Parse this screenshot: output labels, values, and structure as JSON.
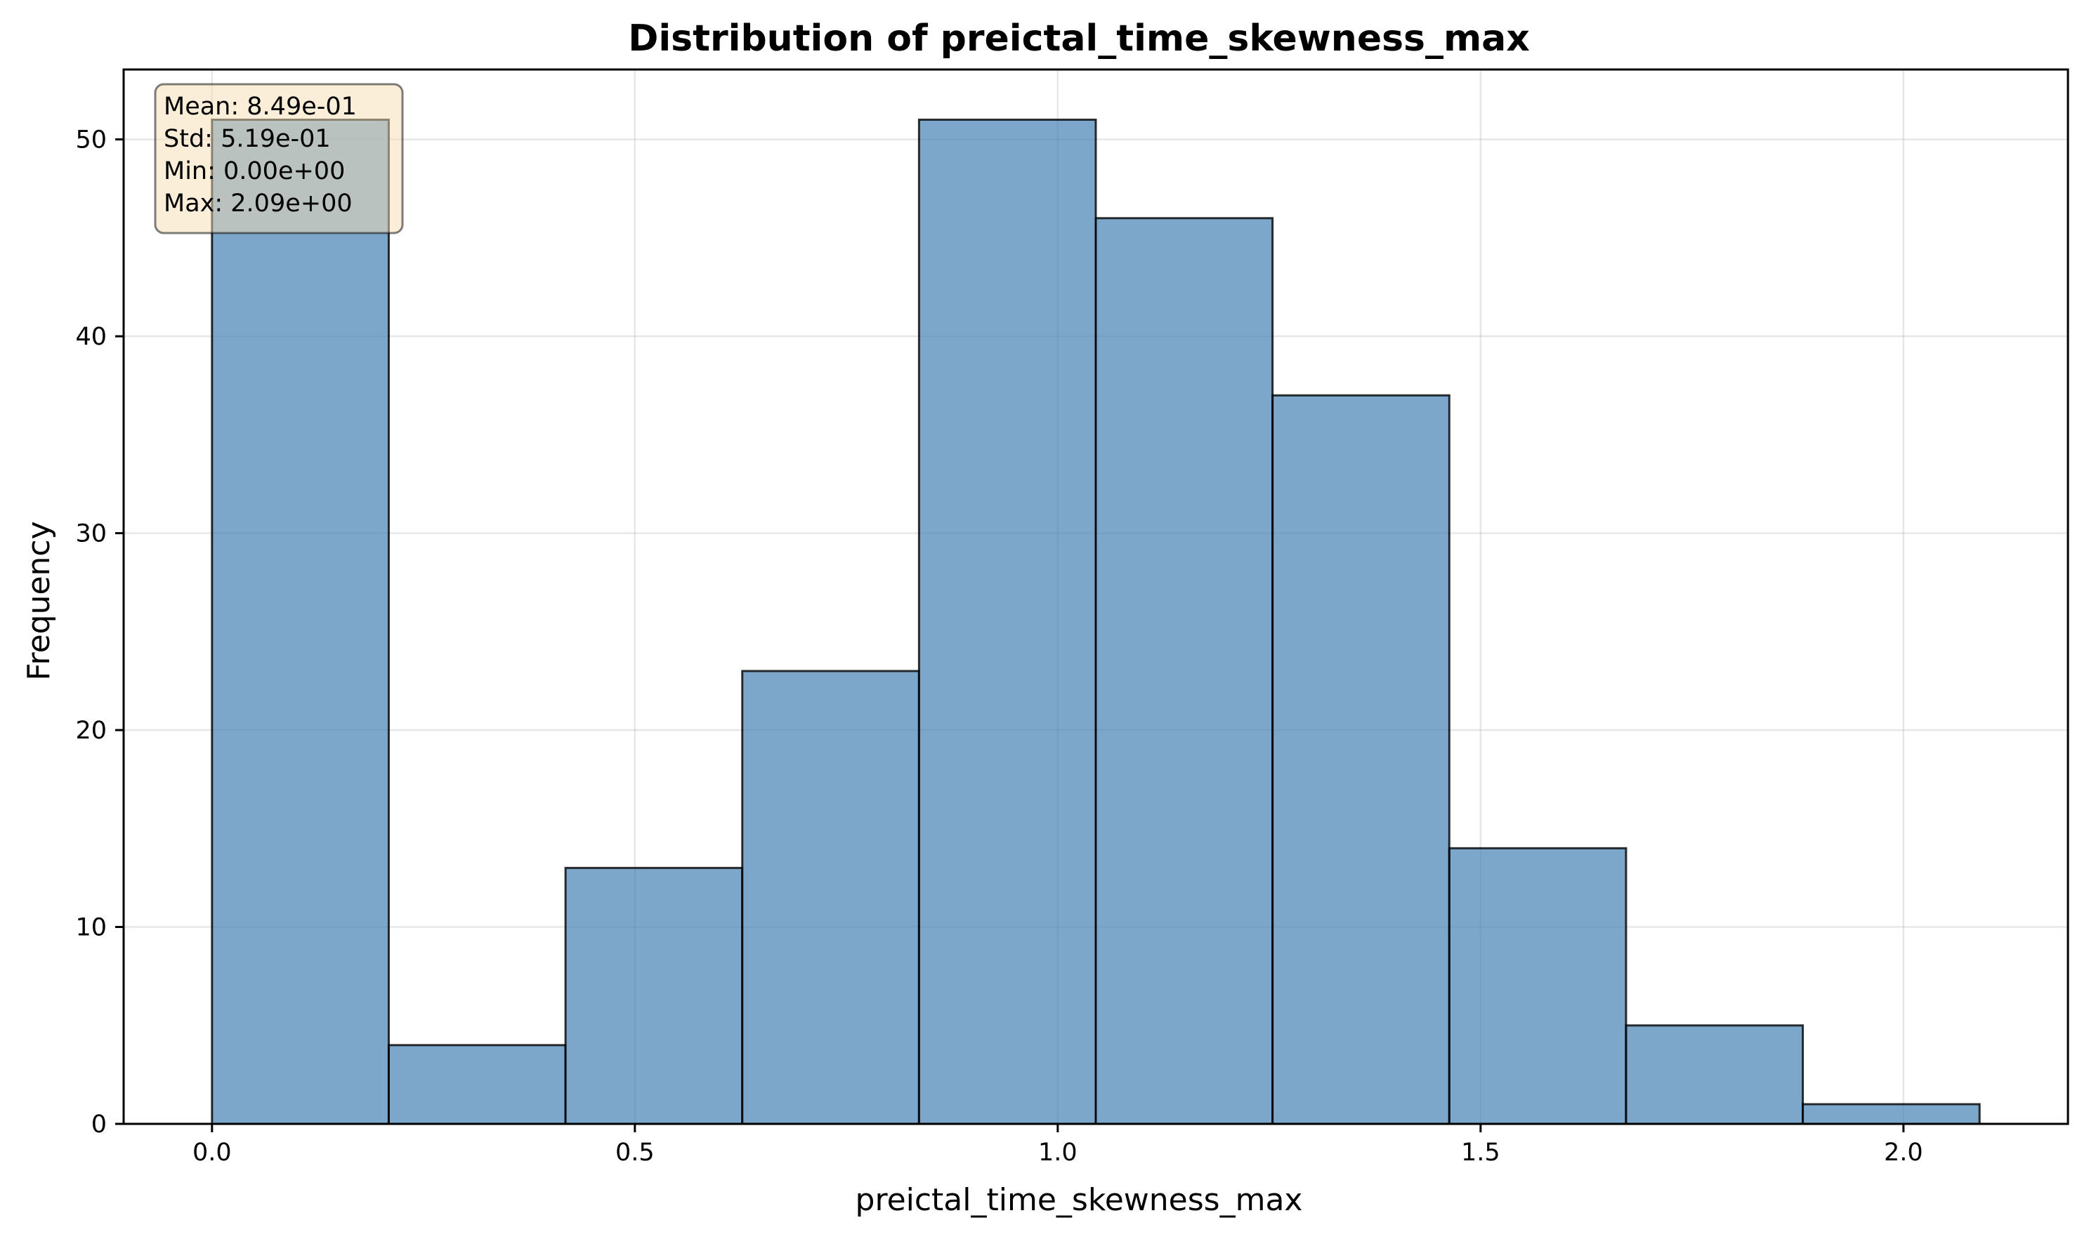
{
  "chart_data": {
    "type": "bar",
    "title": "Distribution of preictal_time_skewness_max",
    "xlabel": "preictal_time_skewness_max",
    "ylabel": "Frequency",
    "bin_edges": [
      0.0,
      0.209,
      0.418,
      0.627,
      0.836,
      1.045,
      1.254,
      1.463,
      1.672,
      1.881,
      2.09
    ],
    "values": [
      51,
      4,
      13,
      23,
      51,
      46,
      37,
      14,
      5,
      1
    ],
    "xlim": [
      -0.1045,
      2.1945
    ],
    "ylim": [
      0,
      53.55
    ],
    "xticks": [
      0.0,
      0.5,
      1.0,
      1.5,
      2.0
    ],
    "xtick_labels": [
      "0.0",
      "0.5",
      "1.0",
      "1.5",
      "2.0"
    ],
    "yticks": [
      0,
      10,
      20,
      30,
      40,
      50
    ],
    "ytick_labels": [
      "0",
      "10",
      "20",
      "30",
      "40",
      "50"
    ],
    "grid": true,
    "bar_color": "#4682b4",
    "bar_edge_color": "#000000",
    "stats_box": {
      "placement": "top-left",
      "lines": [
        "Mean: 8.49e-01",
        "Std: 5.19e-01",
        "Min: 0.00e+00",
        "Max: 2.09e+00"
      ],
      "background": "#f5deb3"
    }
  }
}
